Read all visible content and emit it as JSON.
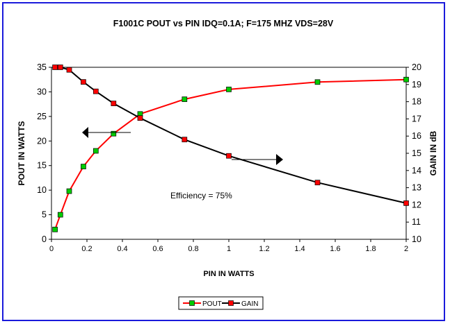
{
  "chart_data": {
    "type": "line",
    "title": "F1001C POUT  vs PIN   IDQ=0.1A; F=175 MHZ  VDS=28V",
    "xlabel": "PIN IN WATTS",
    "ylabel_left": "POUT IN WATTS",
    "ylabel_right": "GAIN  IN  dB",
    "xlim": [
      0,
      2
    ],
    "ylim_left": [
      0,
      35
    ],
    "ylim_right": [
      10,
      20
    ],
    "x_ticks": [
      "0",
      "0.2",
      "0.4",
      "0.6",
      "0.8",
      "1",
      "1.2",
      "1.4",
      "1.6",
      "1.8",
      "2"
    ],
    "y_left_ticks": [
      "0",
      "5",
      "10",
      "15",
      "20",
      "25",
      "30",
      "35"
    ],
    "y_right_ticks": [
      "10",
      "11",
      "12",
      "13",
      "14",
      "15",
      "16",
      "17",
      "18",
      "19",
      "20"
    ],
    "grid": false,
    "legend_position": "bottom-center",
    "annotation": "Efficiency = 75%",
    "series": [
      {
        "name": "POUT",
        "axis": "left",
        "color": "#ff0000",
        "marker_color": "#00cc00",
        "x": [
          0.02,
          0.05,
          0.1,
          0.18,
          0.25,
          0.35,
          0.5,
          0.75,
          1.0,
          1.5,
          2.0
        ],
        "y": [
          2.0,
          5.0,
          9.8,
          14.8,
          18.0,
          21.5,
          25.5,
          28.5,
          30.5,
          32.0,
          32.5
        ]
      },
      {
        "name": "GAIN",
        "axis": "right",
        "color": "#000000",
        "marker_color": "#ff0000",
        "x": [
          0.02,
          0.05,
          0.1,
          0.18,
          0.25,
          0.35,
          0.5,
          0.75,
          1.0,
          1.5,
          2.0
        ],
        "y": [
          20.0,
          20.0,
          19.85,
          19.15,
          18.6,
          17.9,
          17.05,
          15.8,
          14.85,
          13.3,
          12.1
        ]
      }
    ]
  }
}
